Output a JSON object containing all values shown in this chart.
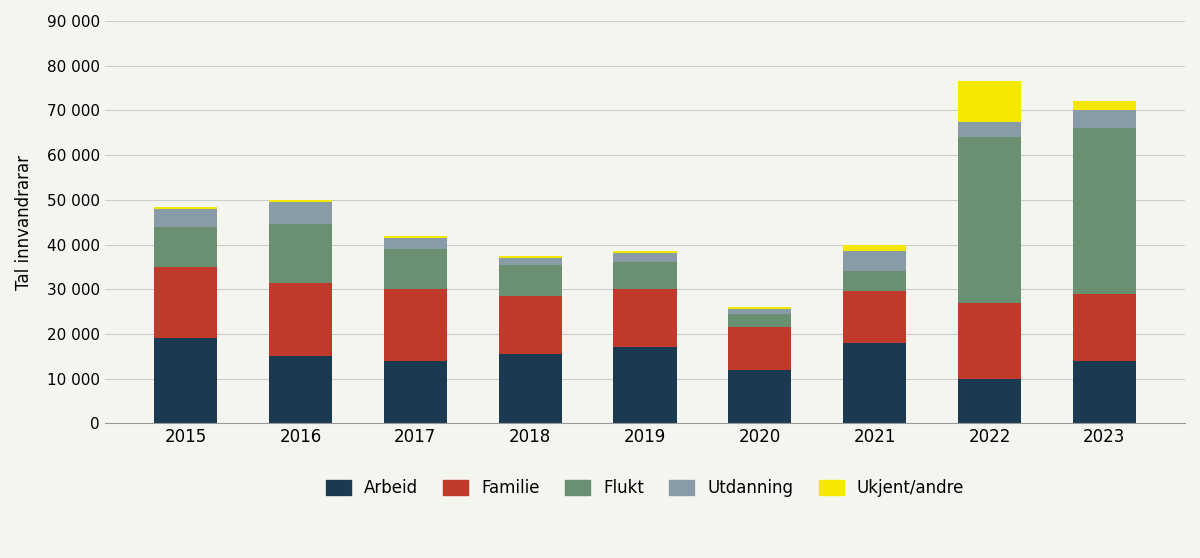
{
  "years": [
    "2015",
    "2016",
    "2017",
    "2018",
    "2019",
    "2020",
    "2021",
    "2022",
    "2023"
  ],
  "arbeid": [
    19000,
    15000,
    14000,
    15500,
    17000,
    12000,
    18000,
    10000,
    14000
  ],
  "familie": [
    16000,
    16500,
    16000,
    13000,
    13000,
    9500,
    11500,
    17000,
    15000
  ],
  "flukt": [
    9000,
    13000,
    9000,
    7000,
    6000,
    3000,
    4500,
    37000,
    37000
  ],
  "utdanning": [
    4000,
    5000,
    2500,
    1500,
    2000,
    1000,
    4500,
    3500,
    4000
  ],
  "ukjent_andre": [
    500,
    500,
    500,
    500,
    500,
    500,
    1500,
    9000,
    2000
  ],
  "colors": {
    "arbeid": "#1a3a52",
    "familie": "#c0392b",
    "flukt": "#6b8f71",
    "utdanning": "#8a9ba8",
    "ukjent_andre": "#f5e800"
  },
  "legend_labels": [
    "Arbeid",
    "Familie",
    "Flukt",
    "Utdanning",
    "Ukjent/andre"
  ],
  "ylabel": "Tal innvandrarar",
  "ylim": [
    0,
    90000
  ],
  "yticks": [
    0,
    10000,
    20000,
    30000,
    40000,
    50000,
    60000,
    70000,
    80000,
    90000
  ],
  "ytick_labels": [
    "0",
    "10 000",
    "20 000",
    "30 000",
    "40 000",
    "50 000",
    "60 000",
    "70 000",
    "80 000",
    "90 000"
  ],
  "background_color": "#f5f5f0",
  "grid_color": "#cccccc"
}
